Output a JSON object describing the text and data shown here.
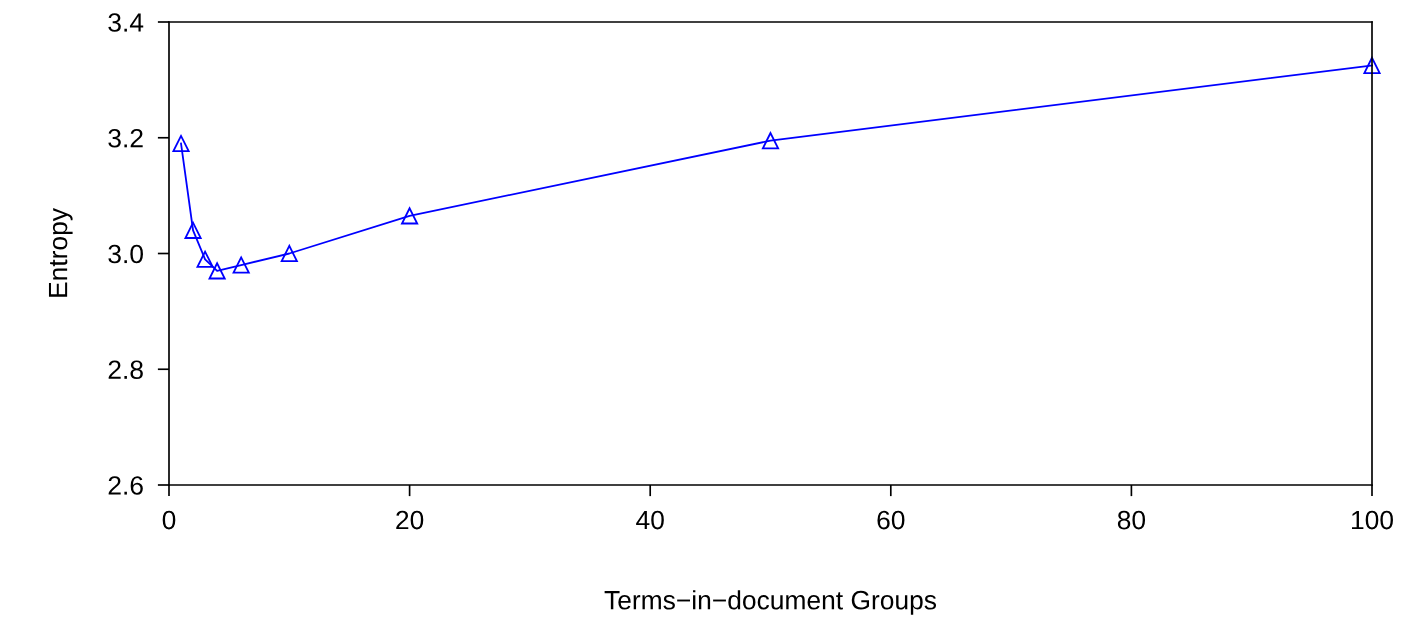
{
  "chart_data": {
    "type": "line",
    "xlabel": "Terms−in−document Groups",
    "ylabel": "Entropy",
    "x": [
      1,
      2,
      3,
      4,
      6,
      10,
      20,
      50,
      100
    ],
    "series": [
      {
        "color": "#0000ff",
        "values": [
          3.19,
          3.04,
          2.99,
          2.97,
          2.98,
          3.0,
          3.065,
          3.195,
          3.325
        ]
      }
    ],
    "xlim": [
      0,
      100
    ],
    "xticks": [
      0,
      20,
      40,
      60,
      80,
      100
    ],
    "ylim": [
      2.6,
      3.4
    ],
    "yticks": [
      2.6,
      2.8,
      {
        "value": 3.0,
        "label": "3.0"
      },
      3.2,
      3.4
    ],
    "marker": "triangle",
    "line_style": "solid",
    "grid": false,
    "legend": false
  }
}
